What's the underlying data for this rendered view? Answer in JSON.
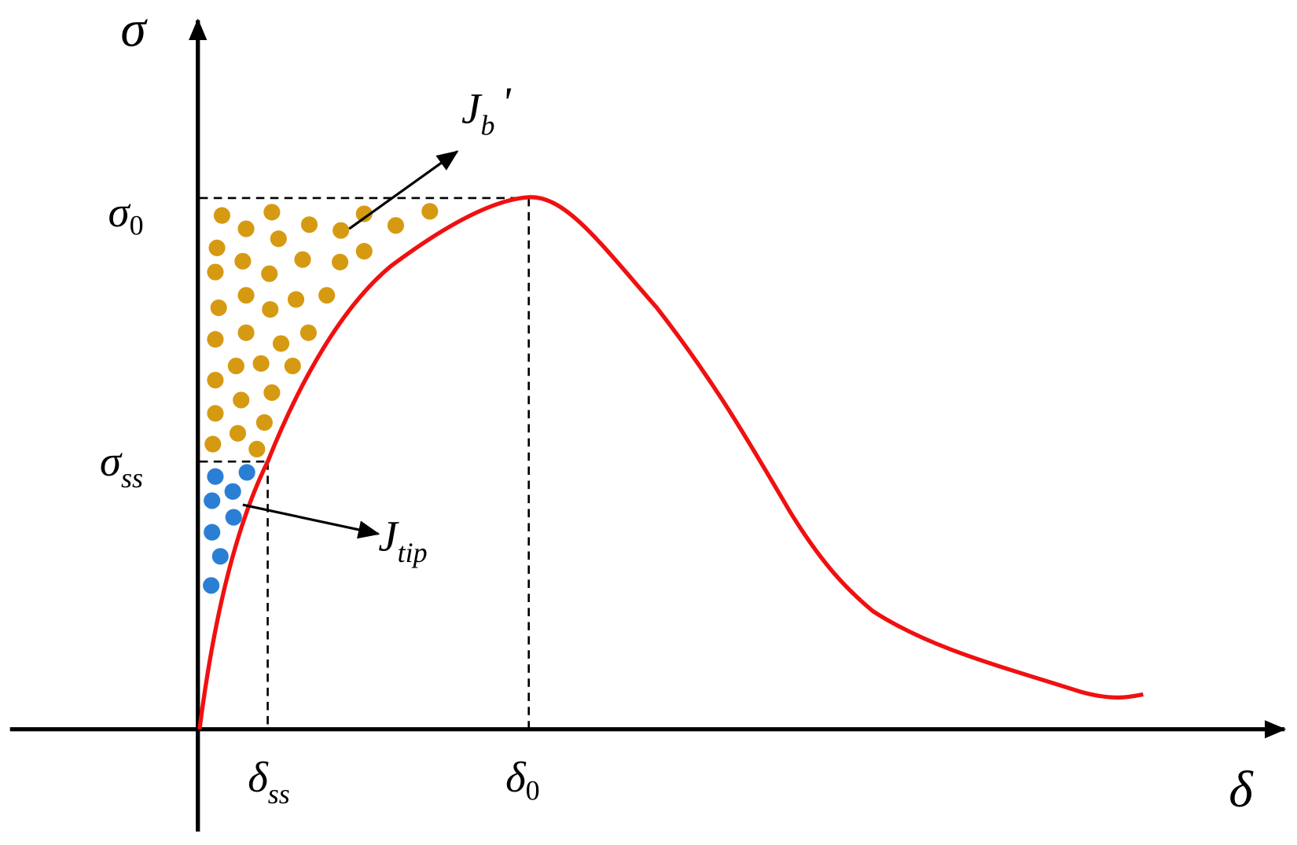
{
  "axes": {
    "y_label": "σ",
    "x_label": "δ"
  },
  "labels": {
    "sigma_0": {
      "main": "σ",
      "sub": "0"
    },
    "sigma_ss": {
      "main": "σ",
      "sub": "ss"
    },
    "delta_ss": {
      "main": "δ",
      "sub": "ss"
    },
    "delta_0": {
      "main": "δ",
      "sub": "0"
    },
    "J_b": {
      "main": "J",
      "sub": "b",
      "suffix": "'"
    },
    "J_tip": {
      "main": "J",
      "sub": "tip"
    }
  }
}
